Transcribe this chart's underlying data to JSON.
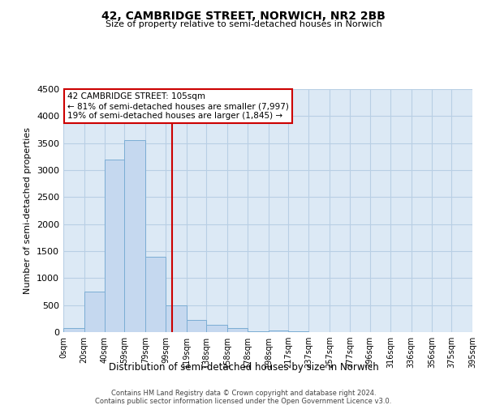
{
  "title": "42, CAMBRIDGE STREET, NORWICH, NR2 2BB",
  "subtitle": "Size of property relative to semi-detached houses in Norwich",
  "xlabel": "Distribution of semi-detached houses by size in Norwich",
  "ylabel": "Number of semi-detached properties",
  "footer_line1": "Contains HM Land Registry data © Crown copyright and database right 2024.",
  "footer_line2": "Contains public sector information licensed under the Open Government Licence v3.0.",
  "annotation_title": "42 CAMBRIDGE STREET: 105sqm",
  "annotation_line2": "← 81% of semi-detached houses are smaller (7,997)",
  "annotation_line3": "19% of semi-detached houses are larger (1,845) →",
  "bin_edges": [
    0,
    20,
    40,
    59,
    79,
    99,
    119,
    138,
    158,
    178,
    198,
    217,
    237,
    257,
    277,
    296,
    316,
    336,
    356,
    375,
    395
  ],
  "bin_counts": [
    75,
    750,
    3200,
    3550,
    1400,
    500,
    220,
    130,
    75,
    10,
    30,
    10,
    5,
    0,
    0,
    0,
    0,
    0,
    0,
    0
  ],
  "bar_color": "#c5d8ef",
  "bar_edge_color": "#7badd4",
  "vline_color": "#cc0000",
  "vline_x": 105,
  "annotation_box_edge_color": "#cc0000",
  "plot_bg_color": "#dce9f5",
  "fig_bg_color": "#ffffff",
  "grid_color": "#b8cfe4",
  "ylim": [
    0,
    4500
  ],
  "yticks": [
    0,
    500,
    1000,
    1500,
    2000,
    2500,
    3000,
    3500,
    4000,
    4500
  ]
}
